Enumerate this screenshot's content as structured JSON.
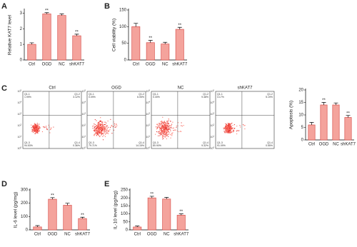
{
  "chart_data": [
    {
      "type": "bar",
      "panel_label": "A",
      "y_label": "Relative KAT7 level",
      "categories": [
        "Ctrl",
        "OGD",
        "NC",
        "shKAT7"
      ],
      "values": [
        1.0,
        2.95,
        2.85,
        1.55
      ],
      "errors": [
        0.1,
        0.08,
        0.1,
        0.1
      ],
      "sig": [
        null,
        "**",
        null,
        "**"
      ],
      "ylim": [
        0,
        3.2
      ],
      "yticks": [
        0,
        1,
        2,
        3
      ],
      "color": "#f4a39c"
    },
    {
      "type": "bar",
      "panel_label": "B",
      "y_label": "Cell viability (%)",
      "categories": [
        "Ctrl",
        "OGD",
        "NC",
        "shKAT7"
      ],
      "values": [
        100,
        52,
        48,
        92
      ],
      "errors": [
        10,
        7,
        5,
        6
      ],
      "sig": [
        null,
        "**",
        null,
        "**"
      ],
      "ylim": [
        0,
        150
      ],
      "yticks": [
        0,
        50,
        100,
        150
      ],
      "color": "#f4a39c"
    },
    {
      "type": "bar",
      "y_label": "Apoptosis (%)",
      "categories": [
        "Ctrl",
        "OGD",
        "NC",
        "shKAT7"
      ],
      "values": [
        6,
        14,
        14,
        9
      ],
      "errors": [
        1,
        1,
        0.8,
        0.8
      ],
      "sig": [
        null,
        "**",
        null,
        "**"
      ],
      "ylim": [
        0,
        20
      ],
      "yticks": [
        0,
        5,
        10,
        15,
        20
      ],
      "color": "#f4a39c"
    },
    {
      "type": "bar",
      "panel_label": "D",
      "y_label": "IL-6 level (pg/mg)",
      "categories": [
        "Ctrl",
        "OGD",
        "NC",
        "shKAT7"
      ],
      "values": [
        22,
        230,
        185,
        85
      ],
      "errors": [
        10,
        12,
        15,
        10
      ],
      "sig": [
        null,
        "**",
        null,
        "**"
      ],
      "ylim": [
        0,
        300
      ],
      "yticks": [
        0,
        100,
        200,
        300
      ],
      "color": "#f4a39c"
    },
    {
      "type": "bar",
      "panel_label": "E",
      "y_label": "IL-10 level (pg/mg)",
      "categories": [
        "Ctrl",
        "OGD",
        "NC",
        "shKAT7"
      ],
      "values": [
        18,
        200,
        193,
        92
      ],
      "errors": [
        6,
        10,
        10,
        8
      ],
      "sig": [
        null,
        "**",
        null,
        "**"
      ],
      "ylim": [
        0,
        250
      ],
      "yticks": [
        0,
        50,
        100,
        150,
        200,
        250
      ],
      "color": "#f4a39c"
    }
  ],
  "flow": {
    "panel_label": "C",
    "axis_base": "10",
    "axis_exponents": [
      0,
      1,
      2,
      3,
      4,
      5
    ],
    "plots": [
      {
        "title": "Ctrl",
        "quadrants": [
          "Q1-1",
          "Q1-2",
          "Q1-3",
          "Q1-4"
        ],
        "percents": [
          "1.99%",
          "3.12%",
          "94.53%",
          "0.36%"
        ],
        "spread": 0.5
      },
      {
        "title": "OGD",
        "quadrants": [
          "Q1-1",
          "Q1-2",
          "Q1-3",
          "Q1-4"
        ],
        "percents": [
          "0.09%",
          "6.05%",
          "79.71%",
          "14.15%"
        ],
        "spread": 1
      },
      {
        "title": "NC",
        "quadrants": [
          "Q1-1",
          "Q1-2",
          "Q1-3",
          "Q1-4"
        ],
        "percents": [
          "0.30%",
          "9.48%",
          "80.90%",
          "9.32%"
        ],
        "spread": 1.1
      },
      {
        "title": "shKAT7",
        "quadrants": [
          "Q1-1",
          "Q1-2",
          "Q1-3",
          "Q1-4"
        ],
        "percents": [
          "3.17%",
          "5.19%",
          "91.09%",
          "0.55%"
        ],
        "spread": 0.6
      }
    ]
  }
}
